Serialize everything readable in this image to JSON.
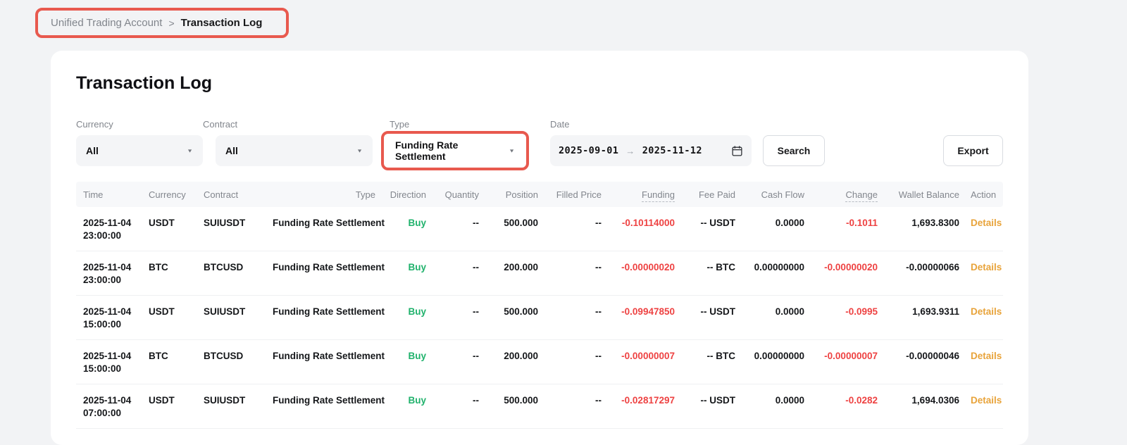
{
  "breadcrumb": {
    "items": [
      "Unified Trading Account",
      "Transaction Log"
    ],
    "separator": ">"
  },
  "header": {
    "title": "Transaction Log"
  },
  "filters": {
    "currency": {
      "label": "Currency",
      "value": "All"
    },
    "contract": {
      "label": "Contract",
      "value": "All"
    },
    "type": {
      "label": "Type",
      "value": "Funding Rate Settlement"
    },
    "date": {
      "label": "Date",
      "start": "2025-09-01",
      "end": "2025-11-12"
    },
    "search_label": "Search",
    "export_label": "Export"
  },
  "icons": {
    "caret": "▼",
    "date_arrow": "→",
    "calendar": "calendar-icon"
  },
  "table": {
    "columns": [
      "Time",
      "Currency",
      "Contract",
      "Type",
      "Direction",
      "Quantity",
      "Position",
      "Filled Price",
      "Funding",
      "Fee Paid",
      "Cash Flow",
      "Change",
      "Wallet Balance",
      "Action"
    ],
    "hint_columns": [
      "Funding",
      "Change"
    ],
    "rows": [
      {
        "time_date": "2025-11-04",
        "time_clock": "23:00:00",
        "currency": "USDT",
        "contract": "SUIUSDT",
        "type": "Funding Rate Settlement",
        "direction": "Buy",
        "quantity": "--",
        "position": "500.000",
        "filled_price": "--",
        "funding": "-0.10114000",
        "fee_paid": "-- USDT",
        "cash_flow": "0.0000",
        "change": "-0.1011",
        "wallet_balance": "1,693.8300",
        "action": "Details"
      },
      {
        "time_date": "2025-11-04",
        "time_clock": "23:00:00",
        "currency": "BTC",
        "contract": "BTCUSD",
        "type": "Funding Rate Settlement",
        "direction": "Buy",
        "quantity": "--",
        "position": "200.000",
        "filled_price": "--",
        "funding": "-0.00000020",
        "fee_paid": "-- BTC",
        "cash_flow": "0.00000000",
        "change": "-0.00000020",
        "wallet_balance": "-0.00000066",
        "action": "Details"
      },
      {
        "time_date": "2025-11-04",
        "time_clock": "15:00:00",
        "currency": "USDT",
        "contract": "SUIUSDT",
        "type": "Funding Rate Settlement",
        "direction": "Buy",
        "quantity": "--",
        "position": "500.000",
        "filled_price": "--",
        "funding": "-0.09947850",
        "fee_paid": "-- USDT",
        "cash_flow": "0.0000",
        "change": "-0.0995",
        "wallet_balance": "1,693.9311",
        "action": "Details"
      },
      {
        "time_date": "2025-11-04",
        "time_clock": "15:00:00",
        "currency": "BTC",
        "contract": "BTCUSD",
        "type": "Funding Rate Settlement",
        "direction": "Buy",
        "quantity": "--",
        "position": "200.000",
        "filled_price": "--",
        "funding": "-0.00000007",
        "fee_paid": "-- BTC",
        "cash_flow": "0.00000000",
        "change": "-0.00000007",
        "wallet_balance": "-0.00000046",
        "action": "Details"
      },
      {
        "time_date": "2025-11-04",
        "time_clock": "07:00:00",
        "currency": "USDT",
        "contract": "SUIUSDT",
        "type": "Funding Rate Settlement",
        "direction": "Buy",
        "quantity": "--",
        "position": "500.000",
        "filled_price": "--",
        "funding": "-0.02817297",
        "fee_paid": "-- USDT",
        "cash_flow": "0.0000",
        "change": "-0.0282",
        "wallet_balance": "1,694.0306",
        "action": "Details"
      }
    ]
  },
  "colors": {
    "positive_green": "#20b26c",
    "negative_red": "#ee4242",
    "link_orange": "#e8a33a",
    "annotation_red": "#e8594e",
    "page_background": "#f2f3f5",
    "card_background": "#ffffff",
    "muted_text": "#81858c"
  }
}
